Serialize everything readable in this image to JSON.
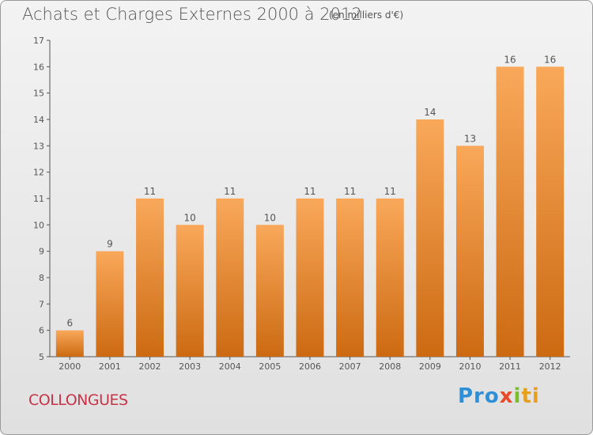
{
  "chart_data": {
    "type": "bar",
    "title": "Achats et Charges Externes 2000 à 2012",
    "subtitle": "(en milliers d'€)",
    "categories": [
      "2000",
      "2001",
      "2002",
      "2003",
      "2004",
      "2005",
      "2006",
      "2007",
      "2008",
      "2009",
      "2010",
      "2011",
      "2012"
    ],
    "values": [
      6,
      9,
      11,
      10,
      11,
      10,
      11,
      11,
      11,
      14,
      13,
      16,
      16
    ],
    "ylim": [
      5,
      17
    ],
    "yticks": [
      5,
      6,
      7,
      8,
      9,
      10,
      11,
      12,
      13,
      14,
      15,
      16,
      17
    ],
    "xlabel": "",
    "ylabel": "",
    "grid": false,
    "bar_color_top": "#f9a85a",
    "bar_color_bottom": "#cc6a12"
  },
  "footer": {
    "town": "COLLONGUES",
    "brand_parts": [
      "Pro",
      "x",
      "i",
      "ti"
    ]
  },
  "colors": {
    "axis": "#555555",
    "title": "#555555",
    "town": "#c8334a"
  }
}
